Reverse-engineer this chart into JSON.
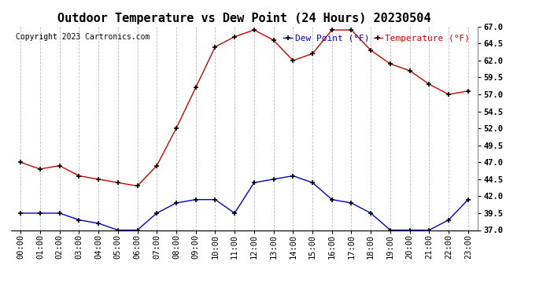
{
  "title": "Outdoor Temperature vs Dew Point (24 Hours) 20230504",
  "copyright_text": "Copyright 2023 Cartronics.com",
  "legend_dew": "Dew Point (°F)",
  "legend_temp": "Temperature (°F)",
  "x_labels": [
    "00:00",
    "01:00",
    "02:00",
    "03:00",
    "04:00",
    "05:00",
    "06:00",
    "07:00",
    "08:00",
    "09:00",
    "10:00",
    "11:00",
    "12:00",
    "13:00",
    "14:00",
    "15:00",
    "16:00",
    "17:00",
    "18:00",
    "19:00",
    "20:00",
    "21:00",
    "22:00",
    "23:00"
  ],
  "temperature": [
    47.0,
    46.0,
    46.5,
    45.0,
    44.5,
    44.0,
    43.5,
    46.5,
    52.0,
    58.0,
    64.0,
    65.5,
    66.5,
    65.0,
    62.0,
    63.0,
    66.5,
    66.5,
    63.5,
    61.5,
    60.5,
    58.5,
    57.0,
    57.5
  ],
  "dew_point": [
    39.5,
    39.5,
    39.5,
    38.5,
    38.0,
    37.0,
    37.0,
    39.5,
    41.0,
    41.5,
    41.5,
    39.5,
    44.0,
    44.5,
    45.0,
    44.0,
    41.5,
    41.0,
    39.5,
    37.0,
    37.0,
    37.0,
    38.5,
    41.5
  ],
  "temp_color": "#cc0000",
  "dew_color": "#0000cc",
  "marker_color": "black",
  "ylim": [
    37.0,
    67.0
  ],
  "yticks": [
    37.0,
    39.5,
    42.0,
    44.5,
    47.0,
    49.5,
    52.0,
    54.5,
    57.0,
    59.5,
    62.0,
    64.5,
    67.0
  ],
  "bg_color": "#ffffff",
  "grid_color": "#bbbbbb",
  "title_fontsize": 11,
  "tick_fontsize": 7.5,
  "legend_fontsize": 8,
  "copyright_fontsize": 7
}
